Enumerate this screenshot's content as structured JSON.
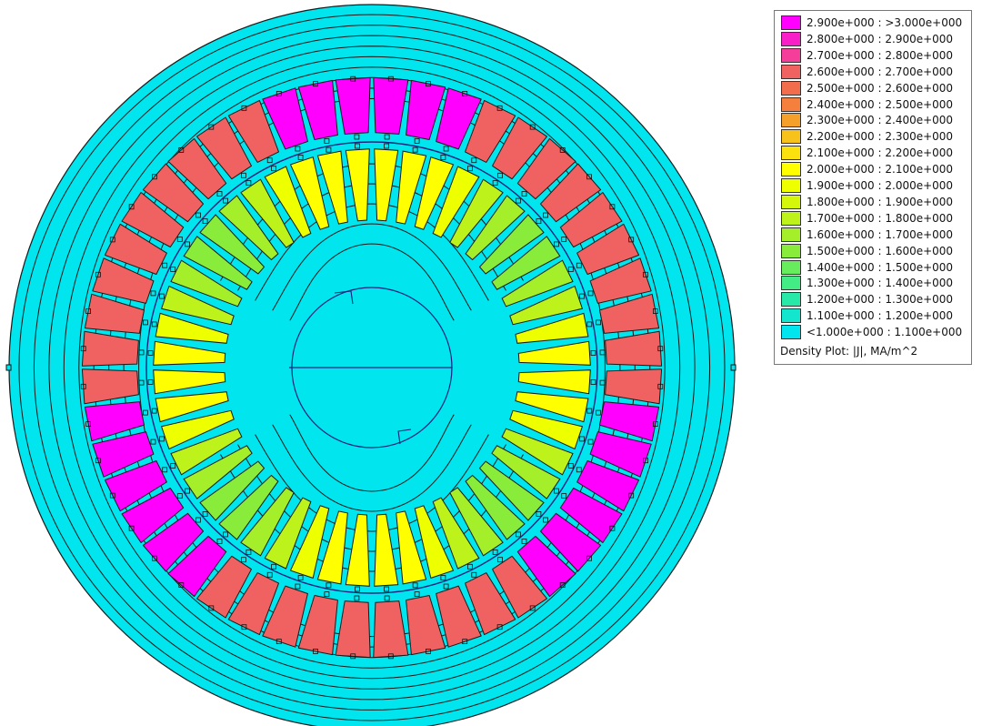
{
  "plot": {
    "colors": {
      "background": "#00e5ee",
      "field_line": "#1a1a1a",
      "circle_line": "#1a237e",
      "marker": "#111111"
    },
    "slot_count": 48,
    "outer_slot_levels": [
      2.95,
      2.95,
      2.95,
      2.65,
      2.65,
      2.65,
      2.65,
      2.65,
      2.65,
      2.65,
      2.65,
      2.65,
      2.65,
      2.95,
      2.95,
      2.95,
      2.95,
      2.95,
      2.95,
      2.65,
      2.65,
      2.65,
      2.65,
      2.65,
      2.65,
      2.65,
      2.65,
      2.65,
      2.65,
      2.95,
      2.95,
      2.95,
      2.95,
      2.95,
      2.95,
      2.65,
      2.65,
      2.65,
      2.65,
      2.65,
      2.65,
      2.65,
      2.65,
      2.65,
      2.65,
      2.95,
      2.95,
      2.95
    ],
    "inner_slot_levels": [
      2.05,
      2.05,
      2.05,
      1.95,
      1.75,
      1.65,
      1.55,
      1.55,
      1.65,
      1.75,
      1.95,
      2.05,
      2.05,
      2.05,
      1.95,
      1.75,
      1.65,
      1.55,
      1.55,
      1.65,
      1.75,
      1.95,
      2.05,
      2.05,
      2.05,
      2.05,
      1.95,
      1.75,
      1.65,
      1.55,
      1.55,
      1.65,
      1.75,
      1.95,
      2.05,
      2.05,
      2.05,
      1.95,
      1.75,
      1.65,
      1.55,
      1.55,
      1.65,
      1.75,
      1.95,
      2.05,
      2.05,
      2.05
    ]
  },
  "legend": {
    "rows": [
      {
        "label": "2.900e+000 : >3.000e+000",
        "color": "#ff00ff"
      },
      {
        "label": "2.800e+000 : 2.900e+000",
        "color": "#f81ec8"
      },
      {
        "label": "2.700e+000 : 2.800e+000",
        "color": "#f53e9a"
      },
      {
        "label": "2.600e+000 : 2.700e+000",
        "color": "#f06262"
      },
      {
        "label": "2.500e+000 : 2.600e+000",
        "color": "#f26d4c"
      },
      {
        "label": "2.400e+000 : 2.500e+000",
        "color": "#f57f3c"
      },
      {
        "label": "2.300e+000 : 2.400e+000",
        "color": "#f6a02c"
      },
      {
        "label": "2.200e+000 : 2.300e+000",
        "color": "#f8c21c"
      },
      {
        "label": "2.100e+000 : 2.200e+000",
        "color": "#fbe10e"
      },
      {
        "label": "2.000e+000 : 2.100e+000",
        "color": "#ffff00"
      },
      {
        "label": "1.900e+000 : 2.000e+000",
        "color": "#eeff00"
      },
      {
        "label": "1.800e+000 : 1.900e+000",
        "color": "#d5f70a"
      },
      {
        "label": "1.700e+000 : 1.800e+000",
        "color": "#bdf31a"
      },
      {
        "label": "1.600e+000 : 1.700e+000",
        "color": "#a5ef2a"
      },
      {
        "label": "1.500e+000 : 1.600e+000",
        "color": "#8aec3a"
      },
      {
        "label": "1.400e+000 : 1.500e+000",
        "color": "#66ec5c"
      },
      {
        "label": "1.300e+000 : 1.400e+000",
        "color": "#44ec86"
      },
      {
        "label": "1.200e+000 : 1.300e+000",
        "color": "#28e9a8"
      },
      {
        "label": "1.100e+000 : 1.200e+000",
        "color": "#12e6cc"
      },
      {
        "label": "<1.000e+000 : 1.100e+000",
        "color": "#00e5ee"
      }
    ],
    "caption": "Density Plot: |J|, MA/m^2"
  }
}
